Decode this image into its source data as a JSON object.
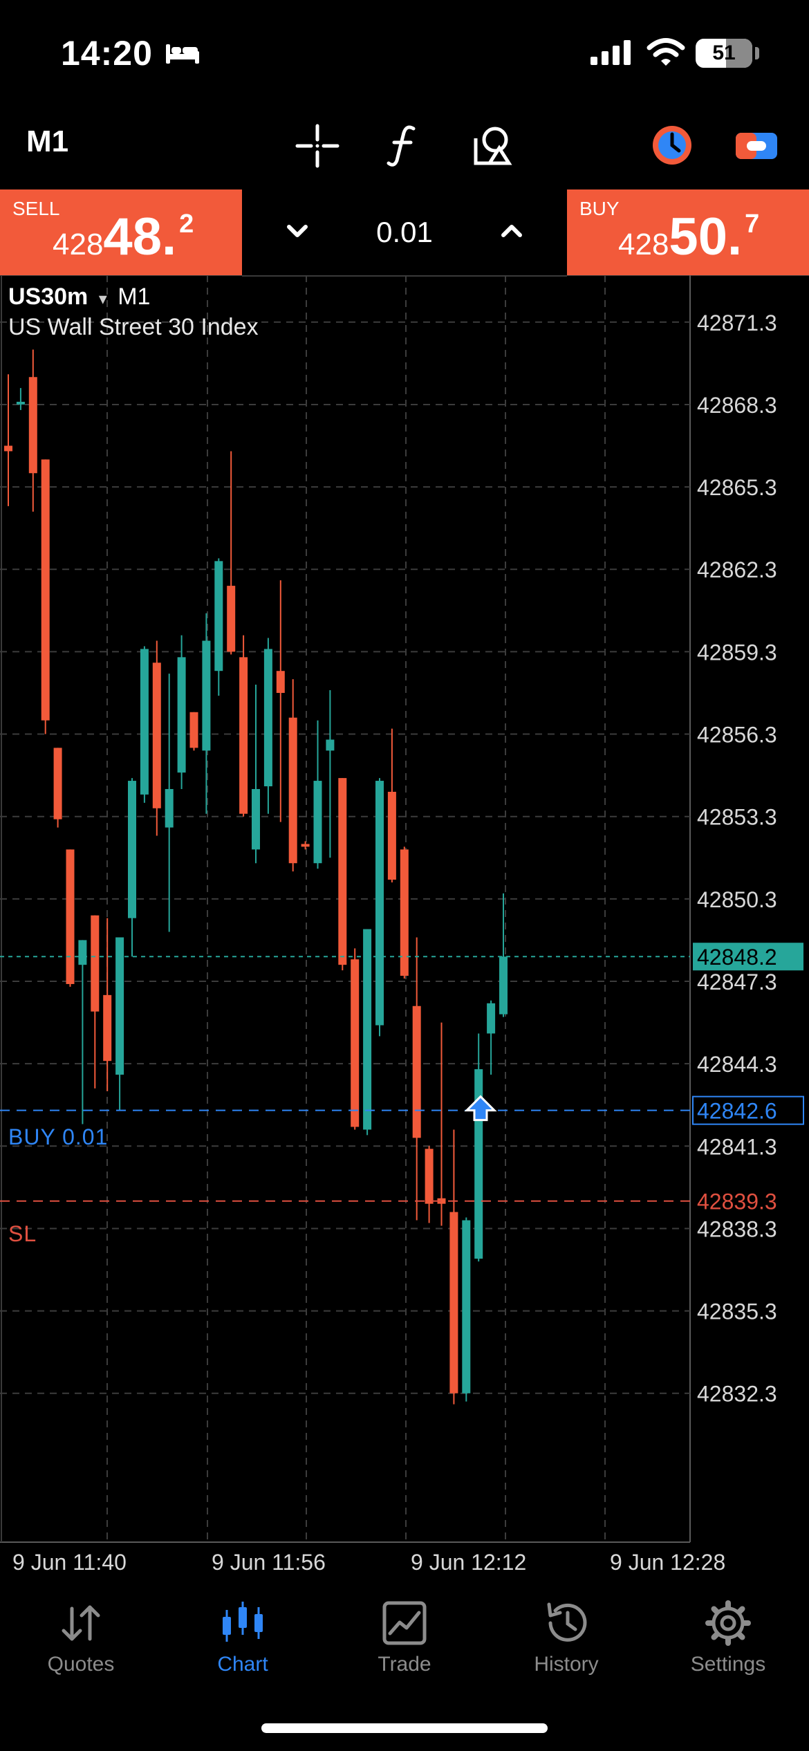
{
  "status": {
    "time": "14:20",
    "battery": "51"
  },
  "toolbar": {
    "timeframe": "M1"
  },
  "trade": {
    "sell_label": "SELL",
    "sell_small": "428",
    "sell_big": "48.",
    "sell_sup": "2",
    "buy_label": "BUY",
    "buy_small": "428",
    "buy_big": "50.",
    "buy_sup": "7",
    "volume": "0.01"
  },
  "chart": {
    "symbol": "US30m",
    "symbol_arrow": "▾",
    "timeframe": "M1",
    "description": "US Wall Street 30 Index",
    "buy_line_label": "BUY 0.01",
    "sl_label": "SL"
  },
  "colors": {
    "bull": "#26a69a",
    "bear": "#f25a3a",
    "accent": "#2f86f6",
    "sl": "#e05040"
  },
  "chart_data": {
    "type": "candlestick",
    "y_ticks": [
      "42871.3",
      "42868.3",
      "42865.3",
      "42862.3",
      "42859.3",
      "42856.3",
      "42853.3",
      "42850.3",
      "42847.3",
      "42844.3",
      "42841.3",
      "42838.3",
      "42835.3",
      "42832.3"
    ],
    "x_ticks": [
      "9 Jun 11:40",
      "9 Jun 11:56",
      "9 Jun 12:12",
      "9 Jun 12:28"
    ],
    "ylim": [
      42829.7,
      42872.0
    ],
    "current_price": "42848.2",
    "buy_entry": "42842.6",
    "stop_loss": "42839.3",
    "candles": [
      {
        "o": 42866.8,
        "h": 42869.4,
        "l": 42864.6,
        "c": 42866.6
      },
      {
        "o": 42868.3,
        "h": 42868.9,
        "l": 42868.1,
        "c": 42868.4
      },
      {
        "o": 42869.3,
        "h": 42870.3,
        "l": 42864.4,
        "c": 42865.8
      },
      {
        "o": 42866.3,
        "h": 42866.3,
        "l": 42856.3,
        "c": 42856.8
      },
      {
        "o": 42855.8,
        "h": 42855.8,
        "l": 42852.9,
        "c": 42853.2
      },
      {
        "o": 42852.1,
        "h": 42852.1,
        "l": 42847.1,
        "c": 42847.2
      },
      {
        "o": 42847.9,
        "h": 42848.8,
        "l": 42842.1,
        "c": 42848.8
      },
      {
        "o": 42849.7,
        "h": 42849.7,
        "l": 42843.4,
        "c": 42846.2
      },
      {
        "o": 42846.8,
        "h": 42849.6,
        "l": 42843.3,
        "c": 42844.4
      },
      {
        "o": 42843.9,
        "h": 42848.9,
        "l": 42842.6,
        "c": 42848.9
      },
      {
        "o": 42849.6,
        "h": 42854.7,
        "l": 42848.2,
        "c": 42854.6
      },
      {
        "o": 42854.1,
        "h": 42859.5,
        "l": 42853.8,
        "c": 42859.4
      },
      {
        "o": 42858.9,
        "h": 42859.7,
        "l": 42852.6,
        "c": 42853.6
      },
      {
        "o": 42852.9,
        "h": 42858.5,
        "l": 42849.1,
        "c": 42854.3
      },
      {
        "o": 42854.9,
        "h": 42859.9,
        "l": 42854.3,
        "c": 42859.1
      },
      {
        "o": 42857.1,
        "h": 42857.1,
        "l": 42855.7,
        "c": 42855.8
      },
      {
        "o": 42855.7,
        "h": 42860.7,
        "l": 42853.4,
        "c": 42859.7
      },
      {
        "o": 42858.6,
        "h": 42862.7,
        "l": 42857.7,
        "c": 42862.6
      },
      {
        "o": 42861.7,
        "h": 42866.6,
        "l": 42859.2,
        "c": 42859.3
      },
      {
        "o": 42859.1,
        "h": 42859.9,
        "l": 42853.3,
        "c": 42853.4
      },
      {
        "o": 42852.1,
        "h": 42858.1,
        "l": 42851.6,
        "c": 42854.3
      },
      {
        "o": 42854.4,
        "h": 42859.8,
        "l": 42853.4,
        "c": 42859.4
      },
      {
        "o": 42858.6,
        "h": 42861.9,
        "l": 42853.1,
        "c": 42857.8
      },
      {
        "o": 42856.9,
        "h": 42858.3,
        "l": 42851.3,
        "c": 42851.6
      },
      {
        "o": 42852.3,
        "h": 42852.4,
        "l": 42852.1,
        "c": 42852.2
      },
      {
        "o": 42851.6,
        "h": 42856.8,
        "l": 42851.4,
        "c": 42854.6
      },
      {
        "o": 42855.7,
        "h": 42857.9,
        "l": 42851.8,
        "c": 42856.1
      },
      {
        "o": 42854.7,
        "h": 42854.7,
        "l": 42847.7,
        "c": 42847.9
      },
      {
        "o": 42848.1,
        "h": 42848.5,
        "l": 42841.9,
        "c": 42842.0
      },
      {
        "o": 42841.9,
        "h": 42849.2,
        "l": 42841.7,
        "c": 42849.2
      },
      {
        "o": 42845.7,
        "h": 42854.7,
        "l": 42845.3,
        "c": 42854.6
      },
      {
        "o": 42854.2,
        "h": 42856.5,
        "l": 42850.9,
        "c": 42851.0
      },
      {
        "o": 42852.1,
        "h": 42852.2,
        "l": 42847.4,
        "c": 42847.5
      },
      {
        "o": 42846.4,
        "h": 42848.9,
        "l": 42838.6,
        "c": 42841.6
      },
      {
        "o": 42841.2,
        "h": 42841.3,
        "l": 42838.5,
        "c": 42839.2
      },
      {
        "o": 42839.4,
        "h": 42845.8,
        "l": 42838.4,
        "c": 42839.2
      },
      {
        "o": 42838.9,
        "h": 42841.9,
        "l": 42831.9,
        "c": 42832.3
      },
      {
        "o": 42832.3,
        "h": 42838.7,
        "l": 42832.0,
        "c": 42838.6
      },
      {
        "o": 42837.2,
        "h": 42845.4,
        "l": 42837.1,
        "c": 42844.1
      },
      {
        "o": 42845.4,
        "h": 42846.6,
        "l": 42843.9,
        "c": 42846.5
      },
      {
        "o": 42846.1,
        "h": 42850.5,
        "l": 42846.0,
        "c": 42848.2
      }
    ]
  },
  "tabs": [
    {
      "label": "Quotes"
    },
    {
      "label": "Chart"
    },
    {
      "label": "Trade"
    },
    {
      "label": "History"
    },
    {
      "label": "Settings"
    }
  ]
}
